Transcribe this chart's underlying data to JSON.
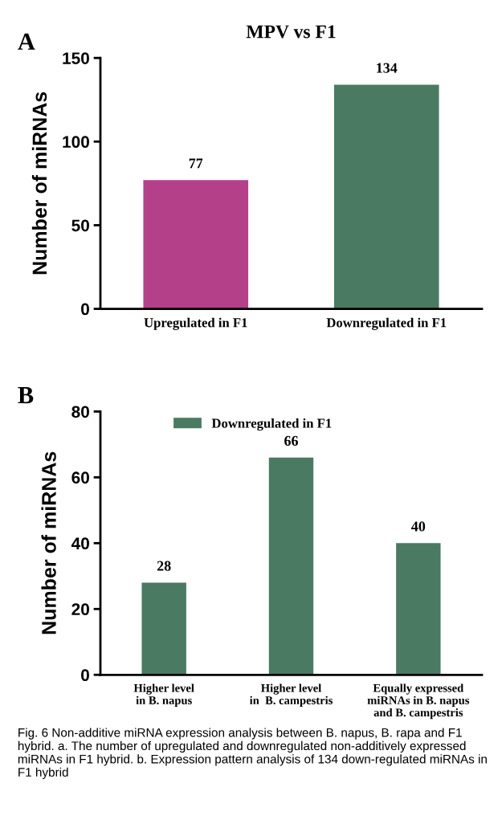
{
  "chart_data": [
    {
      "type": "bar",
      "title": "MPV vs F1",
      "ylabel": "Number of miRNAs",
      "annotations": [
        "A"
      ],
      "categories": [
        "Upregulated in F1",
        "Downregulated in F1"
      ],
      "values": [
        77,
        134
      ],
      "colors": [
        "#b5408a",
        "#4a7a62"
      ],
      "ylim": [
        0,
        150
      ],
      "yticks": [
        0,
        50,
        100,
        150
      ],
      "data_labels": true,
      "grid": false,
      "legend": false
    },
    {
      "type": "bar",
      "ylabel": "Number of miRNAs",
      "annotations": [
        "B",
        "Fig. 6 Non-additive miRNA expression analysis between B. napus, B. rapa and F1 hybrid. a. The number of upregulated and downregulated non-additively expressed miRNAs in F1 hybrid. b. Expression pattern analysis of 134 down-regulated miRNAs in F1 hybrid"
      ],
      "categories": [
        "Higher level\nin B. napus",
        "Higher level\nin  B. campestris",
        "Equally expressed\nmiRNAs in B. napus\nand B. campestris"
      ],
      "series": [
        {
          "name": "Downregulated in F1",
          "color": "#4a7a62",
          "values": [
            28,
            66,
            40
          ]
        }
      ],
      "ylim": [
        0,
        80
      ],
      "yticks": [
        0,
        20,
        40,
        60,
        80
      ],
      "data_labels": true,
      "grid": false,
      "legend": "top"
    }
  ]
}
